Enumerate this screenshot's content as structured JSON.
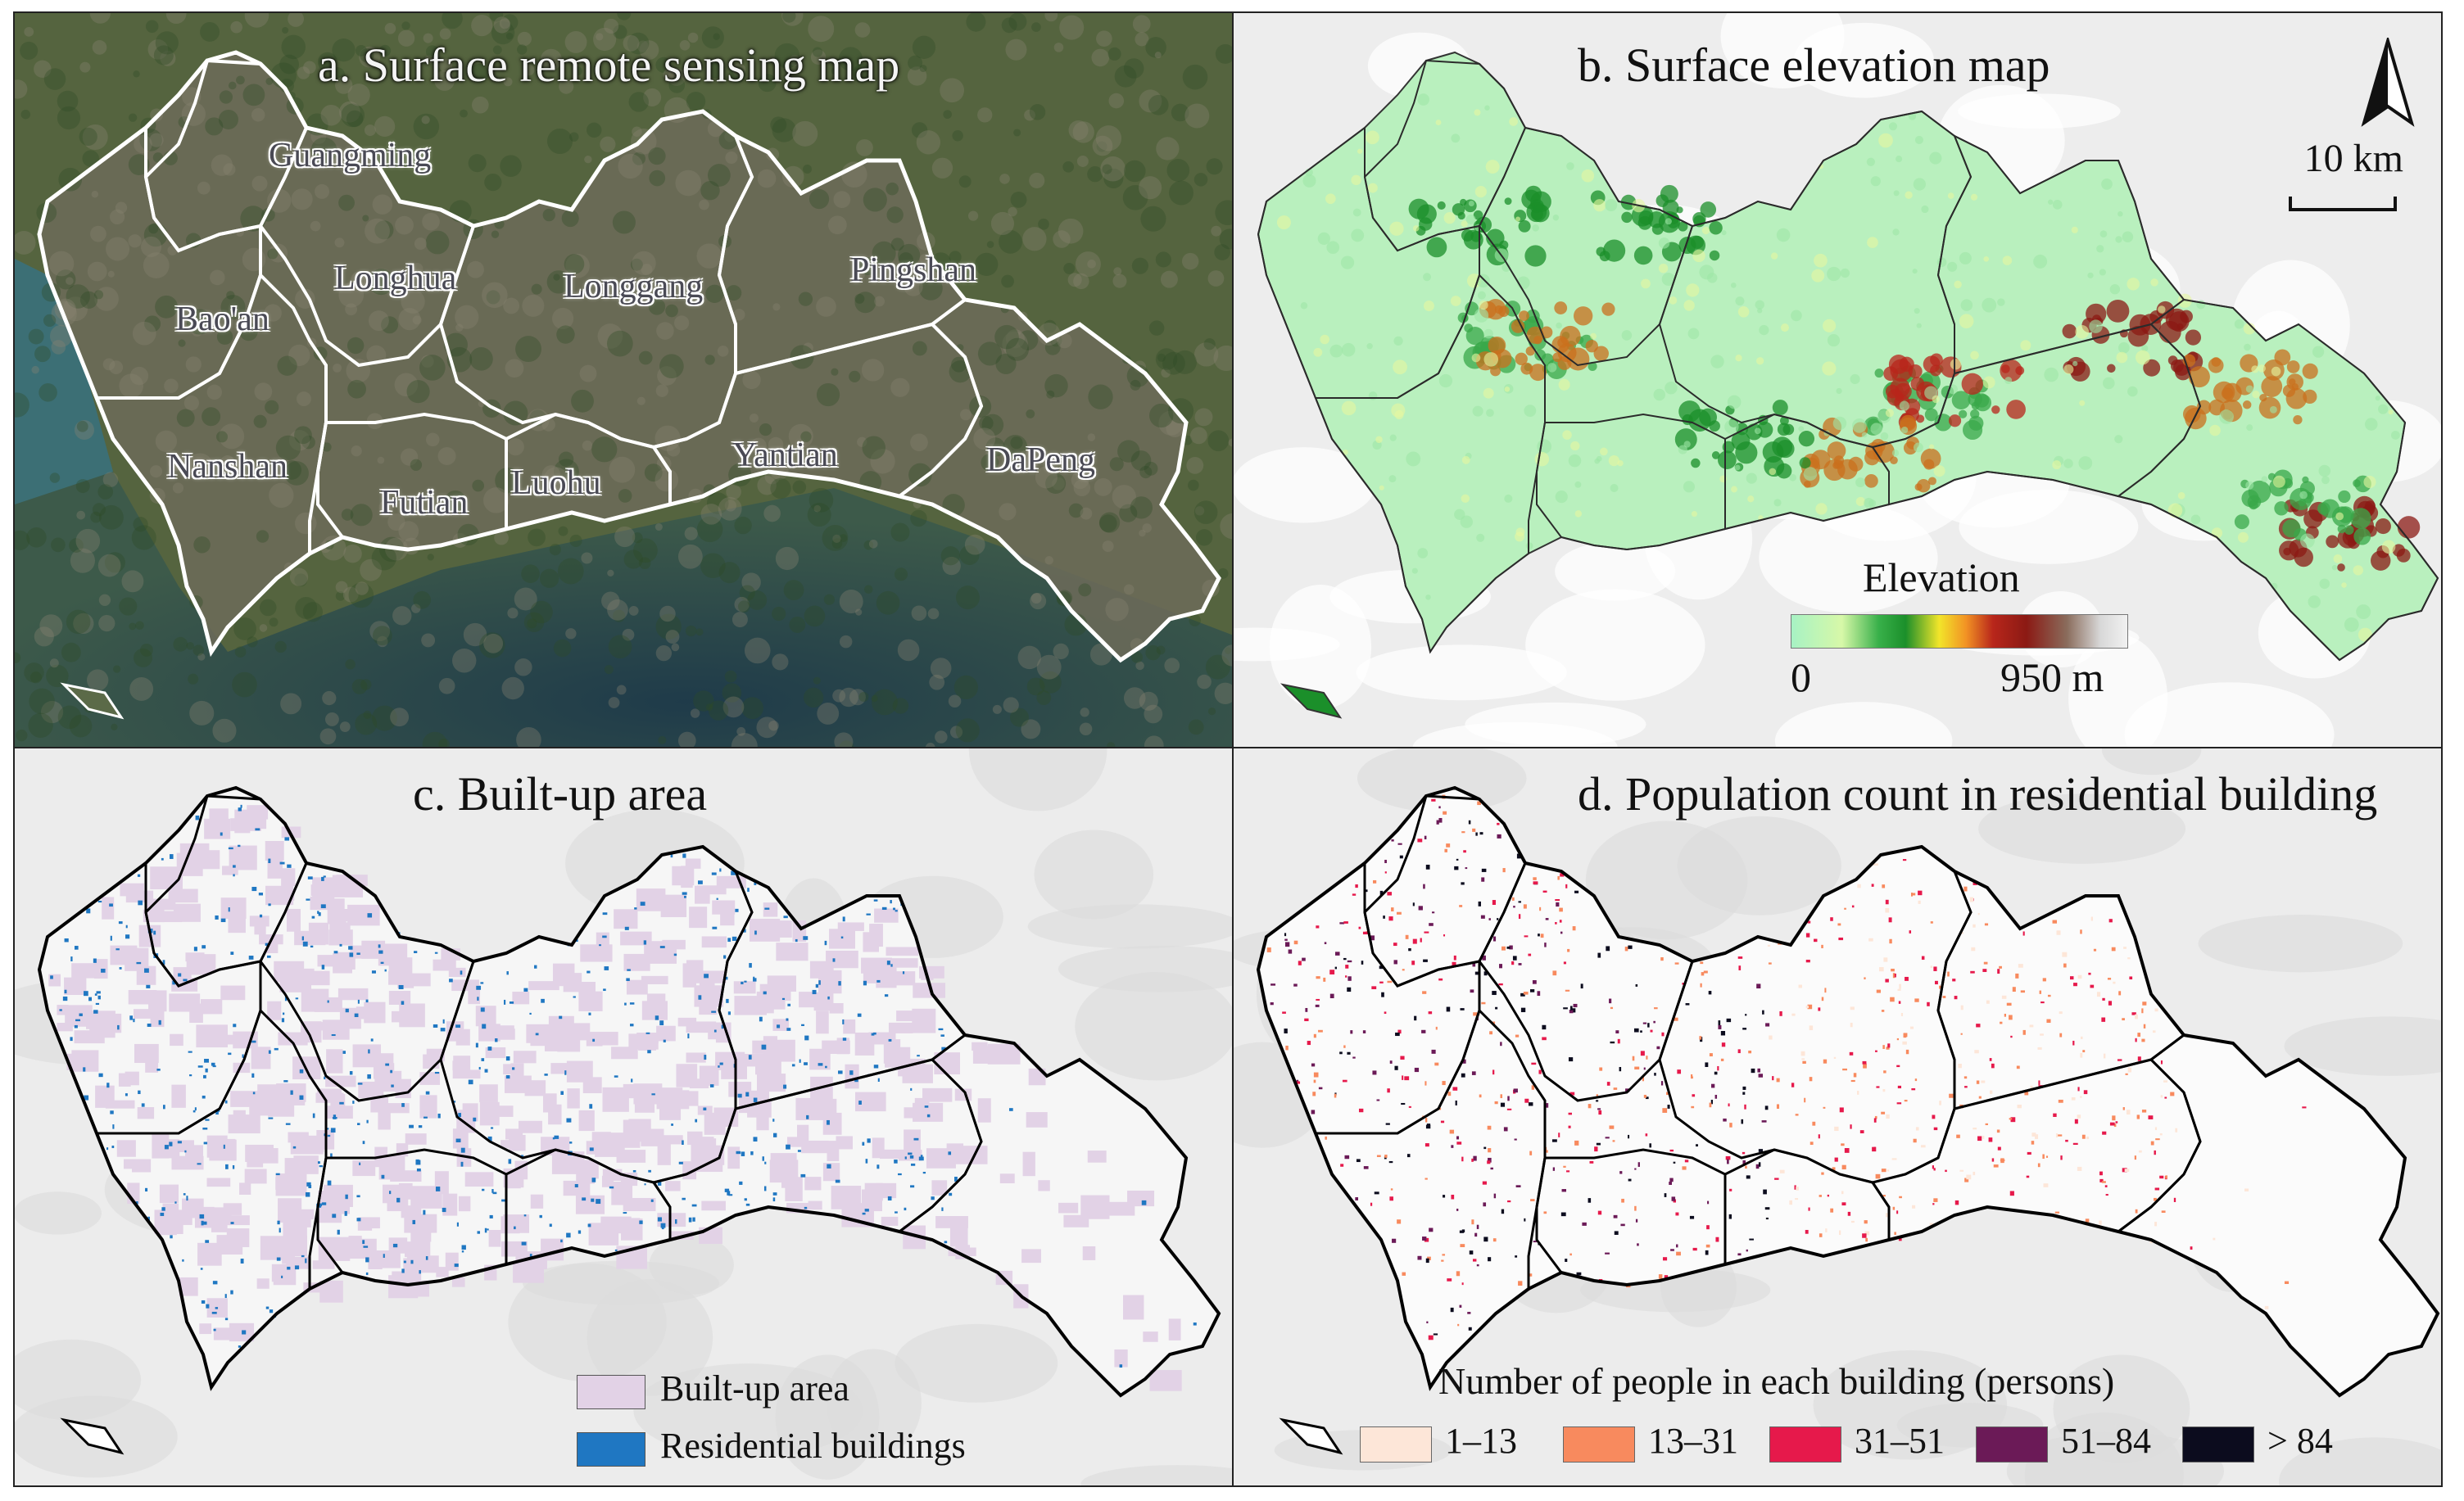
{
  "panels": {
    "a": {
      "title": "a. Surface remote sensing map",
      "districts": [
        "Guangming",
        "Longhua",
        "Bao'an",
        "Longgang",
        "Pingshan",
        "Nanshan",
        "Futian",
        "Luohu",
        "Yantian",
        "DaPeng"
      ]
    },
    "b": {
      "title": "b. Surface elevation map",
      "legend_title": "Elevation",
      "legend_min": "0",
      "legend_max": "950 m",
      "scale_label": "10 km",
      "elevation_range_m": [
        0,
        950
      ]
    },
    "c": {
      "title": "c. Built-up area",
      "legend": [
        {
          "label": "Built-up area",
          "color": "#e2d2e6"
        },
        {
          "label": "Residential buildings",
          "color": "#1f77c2"
        }
      ]
    },
    "d": {
      "title": "d. Population count in residential building",
      "legend_title": "Number of people in each building (persons)",
      "legend": [
        {
          "label": "1–13",
          "color": "#fde6d8"
        },
        {
          "label": "13–31",
          "color": "#f88a5e"
        },
        {
          "label": "31–51",
          "color": "#e6194b"
        },
        {
          "label": "51–84",
          "color": "#6b1a57"
        },
        {
          "label": "> 84",
          "color": "#0c0c1e"
        }
      ]
    }
  },
  "colors": {
    "satellite_land": "#4a5a3a",
    "satellite_sea": "#3b5a66",
    "elevation_low": "#a7f2c4",
    "basemap": "#e9e9e9",
    "boundary_white": "#ffffff",
    "boundary_black": "#000000"
  }
}
